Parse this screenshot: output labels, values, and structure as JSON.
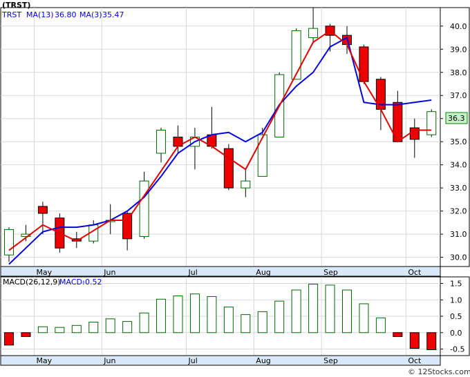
{
  "chart_data": [
    {
      "type": "candlestick",
      "title": "(TRST)",
      "legend": [
        {
          "label": "MA(13)",
          "value": "36.80",
          "color": "#0000dd"
        },
        {
          "label": "MA(3)",
          "value": "35.47",
          "color": "#dd0000"
        }
      ],
      "last_price_label": "36.3",
      "ylim": [
        29.6,
        40.8
      ],
      "yticks": [
        "30.0",
        "31.0",
        "32.0",
        "33.0",
        "34.0",
        "35.0",
        "36.0",
        "37.0",
        "38.0",
        "39.0",
        "40.0"
      ],
      "x_month_labels": [
        "May",
        "Jun",
        "Jul",
        "Aug",
        "Sep",
        "Oct"
      ],
      "candles": [
        {
          "o": 30.1,
          "h": 31.3,
          "l": 29.8,
          "c": 31.2
        },
        {
          "o": 30.9,
          "h": 31.4,
          "l": 30.7,
          "c": 31.0
        },
        {
          "o": 32.2,
          "h": 32.4,
          "l": 31.0,
          "c": 31.9
        },
        {
          "o": 31.7,
          "h": 31.9,
          "l": 30.2,
          "c": 30.4
        },
        {
          "o": 30.8,
          "h": 31.1,
          "l": 30.4,
          "c": 30.7
        },
        {
          "o": 30.7,
          "h": 31.6,
          "l": 30.6,
          "c": 31.4
        },
        {
          "o": 31.6,
          "h": 32.3,
          "l": 31.0,
          "c": 31.6
        },
        {
          "o": 31.9,
          "h": 32.0,
          "l": 30.3,
          "c": 30.8
        },
        {
          "o": 30.9,
          "h": 33.7,
          "l": 30.8,
          "c": 33.3
        },
        {
          "o": 34.5,
          "h": 35.6,
          "l": 34.1,
          "c": 35.5
        },
        {
          "o": 35.2,
          "h": 35.7,
          "l": 34.5,
          "c": 34.8
        },
        {
          "o": 34.8,
          "h": 35.6,
          "l": 33.8,
          "c": 35.2
        },
        {
          "o": 35.3,
          "h": 36.5,
          "l": 34.7,
          "c": 34.8
        },
        {
          "o": 34.7,
          "h": 34.9,
          "l": 32.9,
          "c": 33.0
        },
        {
          "o": 33.0,
          "h": 33.8,
          "l": 32.6,
          "c": 33.3
        },
        {
          "o": 33.5,
          "h": 35.6,
          "l": 33.5,
          "c": 35.3
        },
        {
          "o": 35.2,
          "h": 38.0,
          "l": 35.2,
          "c": 37.9
        },
        {
          "o": 37.7,
          "h": 39.9,
          "l": 37.7,
          "c": 39.8
        },
        {
          "o": 39.5,
          "h": 40.8,
          "l": 39.3,
          "c": 39.9
        },
        {
          "o": 40.0,
          "h": 40.1,
          "l": 38.9,
          "c": 39.6
        },
        {
          "o": 39.6,
          "h": 40.0,
          "l": 38.8,
          "c": 39.2
        },
        {
          "o": 39.1,
          "h": 39.2,
          "l": 37.5,
          "c": 37.6
        },
        {
          "o": 37.7,
          "h": 37.8,
          "l": 35.5,
          "c": 36.4
        },
        {
          "o": 36.7,
          "h": 37.2,
          "l": 35.0,
          "c": 35.0
        },
        {
          "o": 35.6,
          "h": 36.0,
          "l": 34.3,
          "c": 35.1
        },
        {
          "o": 35.3,
          "h": 36.4,
          "l": 35.2,
          "c": 36.3
        }
      ],
      "ma13": [
        29.7,
        30.4,
        31.1,
        31.3,
        31.3,
        31.4,
        31.6,
        32.0,
        32.6,
        33.5,
        34.5,
        35.0,
        35.3,
        35.4,
        35.0,
        35.4,
        36.6,
        37.4,
        38.0,
        39.1,
        39.5,
        36.7,
        36.6,
        36.6,
        36.7,
        36.8
      ],
      "ma13_x": [
        0,
        1,
        2,
        3,
        4,
        5,
        6,
        7,
        8,
        9,
        10,
        11,
        12,
        13,
        14,
        15,
        16,
        17,
        18,
        19,
        20,
        21,
        22,
        23,
        24,
        25
      ],
      "ma3": [
        30.3,
        null,
        31.4,
        null,
        30.7,
        null,
        31.6,
        31.6,
        null,
        null,
        34.8,
        35.2,
        34.8,
        34.3,
        33.8,
        null,
        null,
        null,
        39.3,
        39.8,
        39.2,
        37.6,
        36.4,
        35.0,
        35.5,
        35.5
      ]
    },
    {
      "type": "bar",
      "title": "MACD(26,12,9)",
      "legend": [
        {
          "label": "MACD:",
          "value": "-0.52",
          "color": "#0000dd"
        }
      ],
      "ylim": [
        -0.7,
        1.7
      ],
      "yticks": [
        "-0.5",
        "0.0",
        "0.5",
        "1.0",
        "1.5"
      ],
      "values": [
        -0.38,
        -0.12,
        0.18,
        0.16,
        0.22,
        0.32,
        0.42,
        0.34,
        0.6,
        1.02,
        1.12,
        1.18,
        1.1,
        0.78,
        0.55,
        0.64,
        0.96,
        1.3,
        1.48,
        1.45,
        1.3,
        0.88,
        0.45,
        -0.12,
        -0.48,
        -0.52
      ],
      "x_month_labels": [
        "May",
        "Jun",
        "Jul",
        "Aug",
        "Sep",
        "Oct"
      ]
    }
  ],
  "footer": "© 12Stocks.com"
}
